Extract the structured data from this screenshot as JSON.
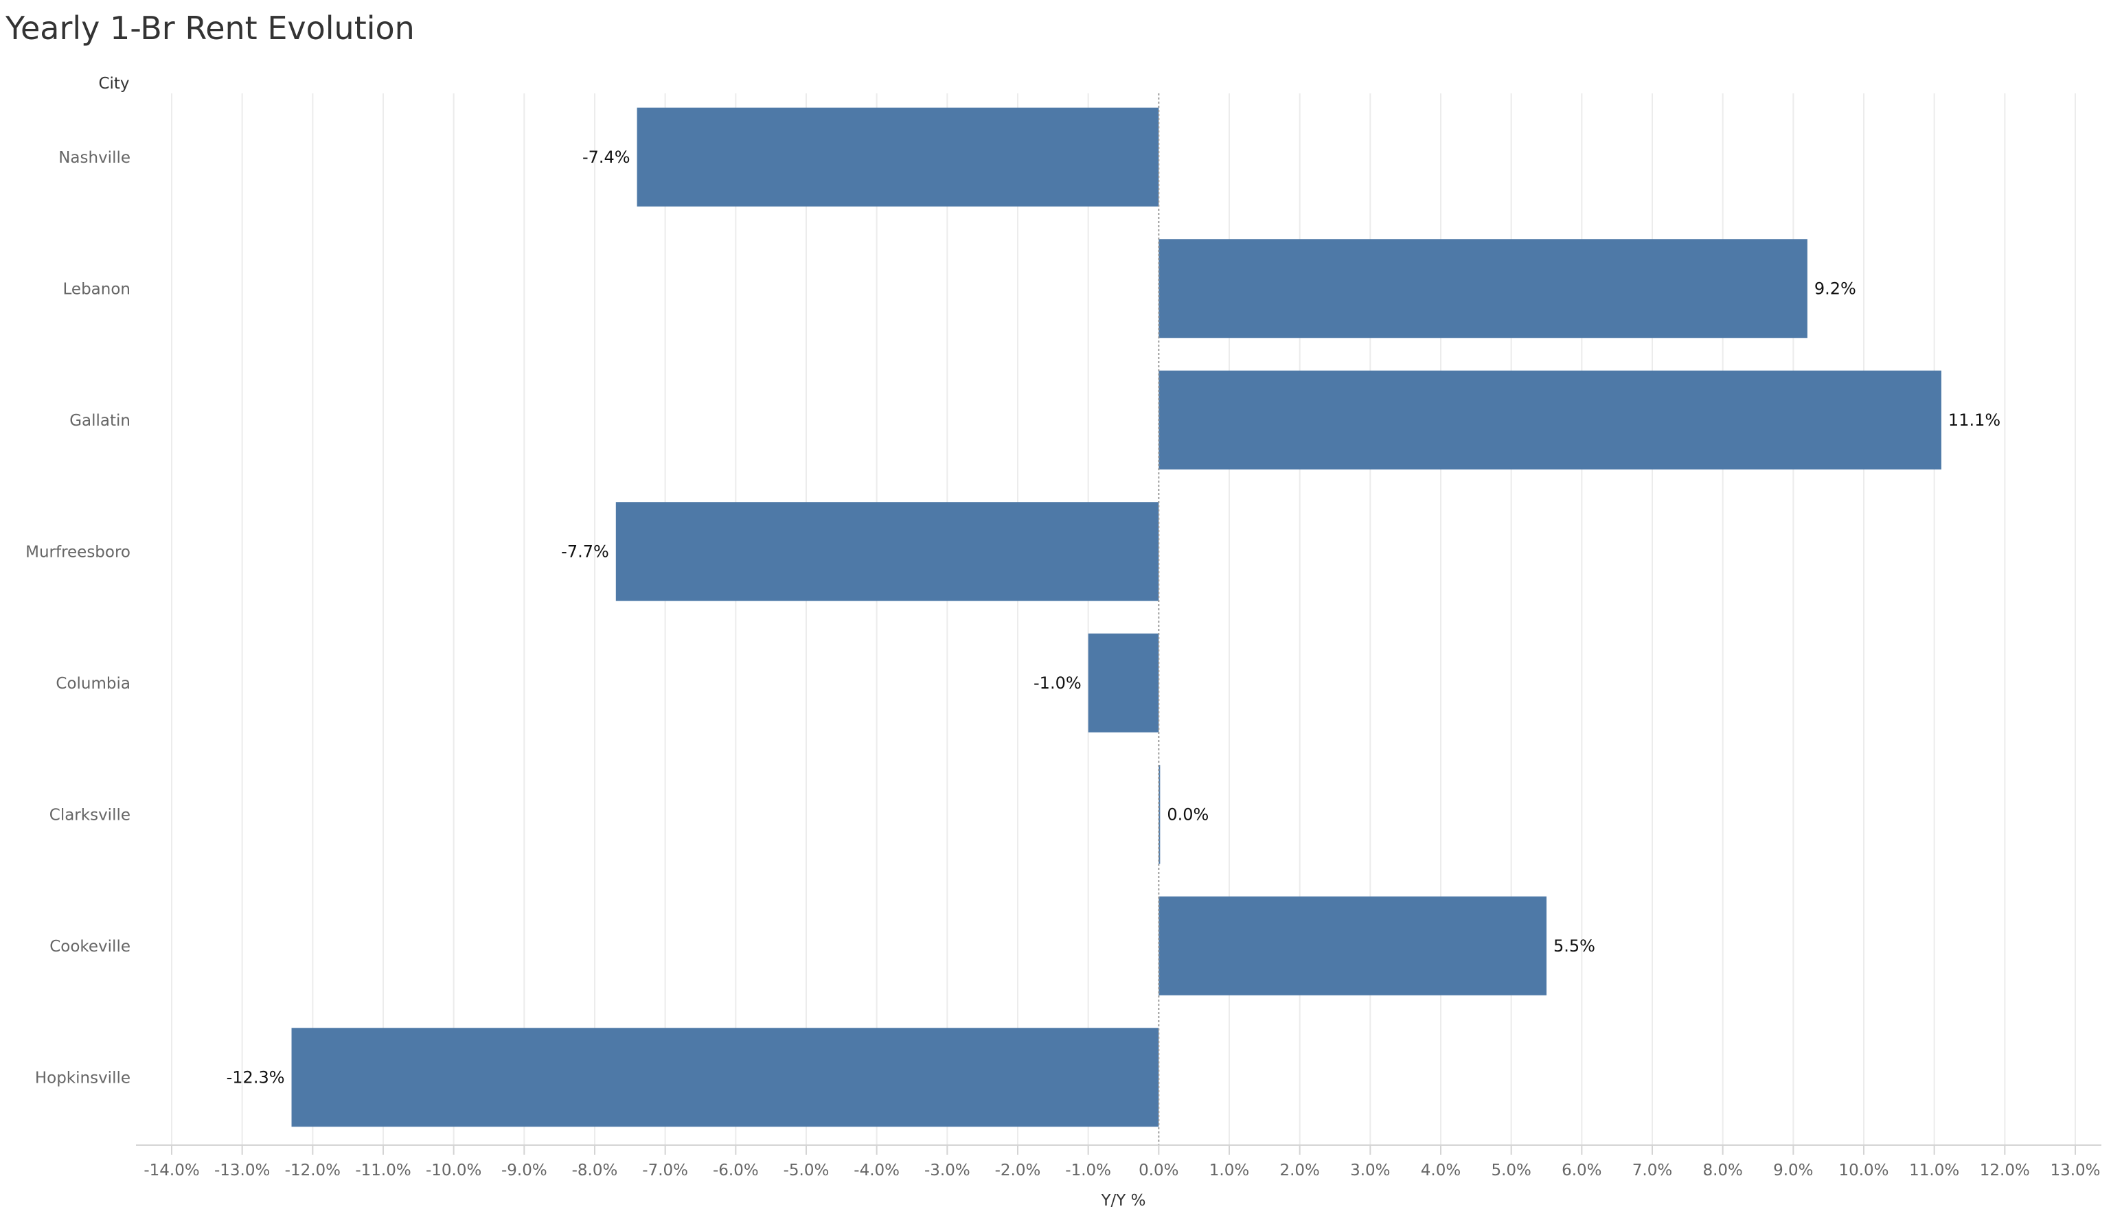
{
  "title": "Yearly 1-Br Rent Evolution",
  "chart_data": {
    "type": "bar",
    "orientation": "horizontal",
    "title": "Yearly 1-Br Rent Evolution",
    "ylabel": "City",
    "xlabel": "Y/Y %",
    "categories": [
      "Nashville",
      "Lebanon",
      "Gallatin",
      "Murfreesboro",
      "Columbia",
      "Clarksville",
      "Cookeville",
      "Hopkinsville"
    ],
    "values": [
      -7.4,
      9.2,
      11.1,
      -7.7,
      -1.0,
      0.0,
      5.5,
      -12.3
    ],
    "data_labels": [
      "-7.4%",
      "9.2%",
      "11.1%",
      "-7.7%",
      "-1.0%",
      "0.0%",
      "5.5%",
      "-12.3%"
    ],
    "xlim": [
      -14,
      13
    ],
    "xticks": [
      -14,
      -13,
      -12,
      -11,
      -10,
      -9,
      -8,
      -7,
      -6,
      -5,
      -4,
      -3,
      -2,
      -1,
      0,
      1,
      2,
      3,
      4,
      5,
      6,
      7,
      8,
      9,
      10,
      11,
      12,
      13
    ],
    "xtick_labels": [
      "-14.0%",
      "-13.0%",
      "-12.0%",
      "-11.0%",
      "-10.0%",
      "-9.0%",
      "-8.0%",
      "-7.0%",
      "-6.0%",
      "-5.0%",
      "-4.0%",
      "-3.0%",
      "-2.0%",
      "-1.0%",
      "0.0%",
      "1.0%",
      "2.0%",
      "3.0%",
      "4.0%",
      "5.0%",
      "6.0%",
      "7.0%",
      "8.0%",
      "9.0%",
      "10.0%",
      "11.0%",
      "12.0%",
      "13.0%"
    ],
    "grid": true,
    "bar_color": "#4e79a7"
  }
}
